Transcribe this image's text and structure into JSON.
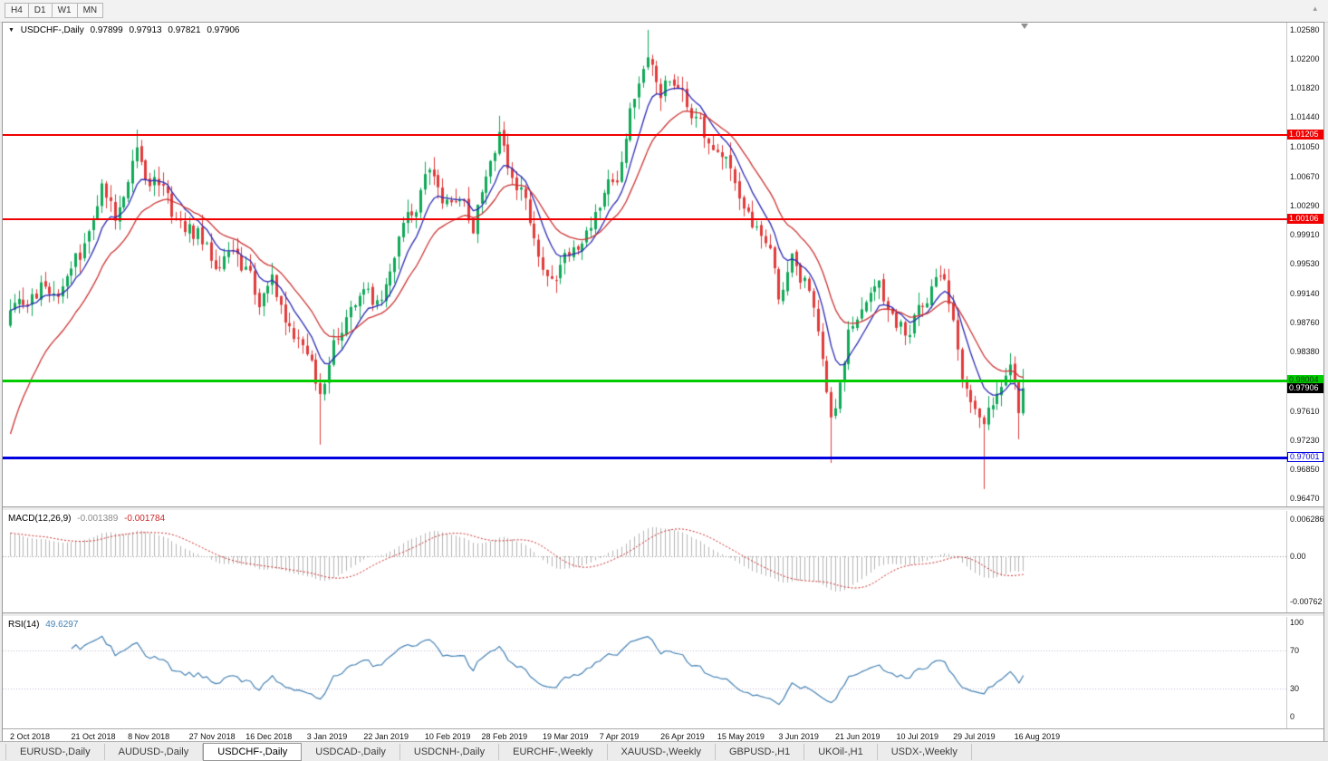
{
  "toolbar": {
    "timeframes": [
      "H4",
      "D1",
      "W1",
      "MN"
    ],
    "handle_icon": "▴"
  },
  "chart_header": {
    "dropdown_icon": "▼",
    "symbol": "USDCHF-,Daily",
    "open": "0.97899",
    "high": "0.97913",
    "low": "0.97821",
    "close": "0.97906"
  },
  "price_axis": {
    "max": 1.0258,
    "min": 0.9647,
    "ticks": [
      "1.02580",
      "1.02200",
      "1.01820",
      "1.01440",
      "1.01050",
      "1.00670",
      "1.00290",
      "0.99910",
      "0.99530",
      "0.99140",
      "0.98760",
      "0.98380",
      "0.97990",
      "0.97610",
      "0.97230",
      "0.96850",
      "0.96470"
    ]
  },
  "hlines": [
    {
      "name": "resistance-upper",
      "price": 1.01205,
      "label": "1.01205",
      "line": "#f00000",
      "thickness": 2,
      "label_bg": "#f00000",
      "label_fg": "#ffffff",
      "full_width": false
    },
    {
      "name": "resistance-lower",
      "price": 1.00106,
      "label": "1.00106",
      "line": "#f00000",
      "thickness": 2,
      "label_bg": "#f00000",
      "label_fg": "#ffffff",
      "full_width": false
    },
    {
      "name": "support-green",
      "price": 0.98004,
      "label": "0.98004",
      "line": "#00cc00",
      "thickness": 3,
      "label_bg": "#00cc00",
      "label_fg": "#063f06",
      "full_width": true
    },
    {
      "name": "support-blue",
      "price": 0.97001,
      "label": "0.97001",
      "line": "#0000e0",
      "thickness": 3,
      "label_bg": "#ffffff",
      "label_fg": "#0000e0",
      "label_border": "#0000e0",
      "full_width": false
    }
  ],
  "current_price": {
    "value": 0.97906,
    "text": "0.97906",
    "bg": "#000000",
    "fg": "#ffffff"
  },
  "macd_panel": {
    "title": "MACD(12,26,9)",
    "main_value": "-0.001389",
    "signal_value": "-0.001784",
    "axis_labels": [
      "0.006286",
      "0.00",
      "-0.00762"
    ],
    "axis_values": [
      0.006286,
      0,
      -0.00762
    ]
  },
  "rsi_panel": {
    "title": "RSI(14)",
    "value": "49.6297",
    "axis_labels": [
      "100",
      "70",
      "30",
      "0"
    ],
    "axis_values": [
      100,
      70,
      30,
      0
    ],
    "levels": [
      70,
      30
    ]
  },
  "time_axis": {
    "labels": [
      "2 Oct 2018",
      "21 Oct 2018",
      "8 Nov 2018",
      "27 Nov 2018",
      "16 Dec 2018",
      "3 Jan 2019",
      "22 Jan 2019",
      "10 Feb 2019",
      "28 Feb 2019",
      "19 Mar 2019",
      "7 Apr 2019",
      "26 Apr 2019",
      "15 May 2019",
      "3 Jun 2019",
      "21 Jun 2019",
      "10 Jul 2019",
      "29 Jul 2019",
      "16 Aug 2019"
    ]
  },
  "tabs": {
    "active_index": 2,
    "items": [
      "EURUSD-,Daily",
      "AUDUSD-,Daily",
      "USDCHF-,Daily",
      "USDCAD-,Daily",
      "USDCNH-,Daily",
      "EURCHF-,Weekly",
      "XAUUSD-,Weekly",
      "GBPUSD-,H1",
      "UKOil-,H1",
      "USDX-,Weekly"
    ]
  },
  "colors": {
    "bull": "#0fa958",
    "bear": "#e13b3b",
    "ma_fast": "#2a2ab4",
    "ma_slow": "#cc3434",
    "macd_hist": "#b4b4b4",
    "macd_signal": "#cc2a2a",
    "macd_zero": "#909090",
    "rsi_line": "#4682b4",
    "rsi_levels": "#c4b8d4"
  },
  "chart_data": {
    "type": "candlestick",
    "symbol": "USDCHF",
    "timeframe": "Daily",
    "candle_count": 233,
    "visible_price_range": {
      "min": 0.9647,
      "max": 1.0258
    },
    "horizontal_line_prices": [
      1.01205,
      1.00106,
      0.98004,
      0.97001
    ],
    "close_path_anchors": [
      [
        0,
        0.99
      ],
      [
        4,
        0.9888
      ],
      [
        8,
        0.993
      ],
      [
        12,
        0.9922
      ],
      [
        16,
        0.9962
      ],
      [
        19,
        1.0002
      ],
      [
        21,
        1.0056
      ],
      [
        24,
        1.002
      ],
      [
        27,
        1.0078
      ],
      [
        29,
        1.0096
      ],
      [
        31,
        1.0044
      ],
      [
        34,
        1.0062
      ],
      [
        38,
        1.0002
      ],
      [
        43,
        0.9992
      ],
      [
        47,
        0.995
      ],
      [
        52,
        0.9972
      ],
      [
        57,
        0.9906
      ],
      [
        60,
        0.9932
      ],
      [
        64,
        0.9862
      ],
      [
        69,
        0.9832
      ],
      [
        71,
        0.9788
      ],
      [
        74,
        0.9842
      ],
      [
        78,
        0.99
      ],
      [
        82,
        0.9922
      ],
      [
        85,
        0.9892
      ],
      [
        89,
        0.9988
      ],
      [
        94,
        1.0048
      ],
      [
        96,
        1.0078
      ],
      [
        99,
        1.0014
      ],
      [
        102,
        1.004
      ],
      [
        106,
        1.0004
      ],
      [
        110,
        1.0096
      ],
      [
        112,
        1.0128
      ],
      [
        114,
        1.0082
      ],
      [
        117,
        1.0048
      ],
      [
        121,
        0.9974
      ],
      [
        124,
        0.9932
      ],
      [
        127,
        0.9958
      ],
      [
        131,
        0.9988
      ],
      [
        135,
        1.0022
      ],
      [
        139,
        1.0068
      ],
      [
        142,
        1.0156
      ],
      [
        146,
        1.0206
      ],
      [
        149,
        1.0178
      ],
      [
        152,
        1.0198
      ],
      [
        155,
        1.0168
      ],
      [
        158,
        1.0132
      ],
      [
        161,
        1.011
      ],
      [
        164,
        1.0088
      ],
      [
        167,
        1.005
      ],
      [
        170,
        1.0012
      ],
      [
        174,
        0.9988
      ],
      [
        176,
        0.9922
      ],
      [
        179,
        0.9958
      ],
      [
        182,
        0.9932
      ],
      [
        185,
        0.985
      ],
      [
        188,
        0.9744
      ],
      [
        190,
        0.9792
      ],
      [
        192,
        0.9858
      ],
      [
        195,
        0.9898
      ],
      [
        199,
        0.992
      ],
      [
        202,
        0.9874
      ],
      [
        205,
        0.9862
      ],
      [
        208,
        0.989
      ],
      [
        211,
        0.9922
      ],
      [
        214,
        0.9944
      ],
      [
        216,
        0.9882
      ],
      [
        218,
        0.9794
      ],
      [
        220,
        0.9764
      ],
      [
        223,
        0.9726
      ],
      [
        225,
        0.977
      ],
      [
        227,
        0.9802
      ],
      [
        229,
        0.9838
      ],
      [
        230,
        0.9798
      ],
      [
        231,
        0.9756
      ],
      [
        232,
        0.9791
      ]
    ],
    "wick_spikes": [
      {
        "i": 29,
        "high": 1.0128
      },
      {
        "i": 71,
        "low": 0.9717
      },
      {
        "i": 112,
        "high": 1.0146
      },
      {
        "i": 146,
        "high": 1.0258
      },
      {
        "i": 188,
        "low": 0.9693
      },
      {
        "i": 223,
        "low": 0.9659
      },
      {
        "i": 231,
        "low": 0.9724
      }
    ],
    "last_candle": {
      "open": 0.97899,
      "high": 0.97913,
      "low": 0.97821,
      "close": 0.97906
    },
    "overlays": [
      {
        "name": "fast-ma",
        "type": "ema",
        "period": 8
      },
      {
        "name": "slow-ma",
        "type": "ema",
        "period": 18
      }
    ],
    "indicators": [
      {
        "name": "macd",
        "fast": 12,
        "slow": 26,
        "signal": 9
      },
      {
        "name": "rsi",
        "period": 14
      }
    ]
  }
}
